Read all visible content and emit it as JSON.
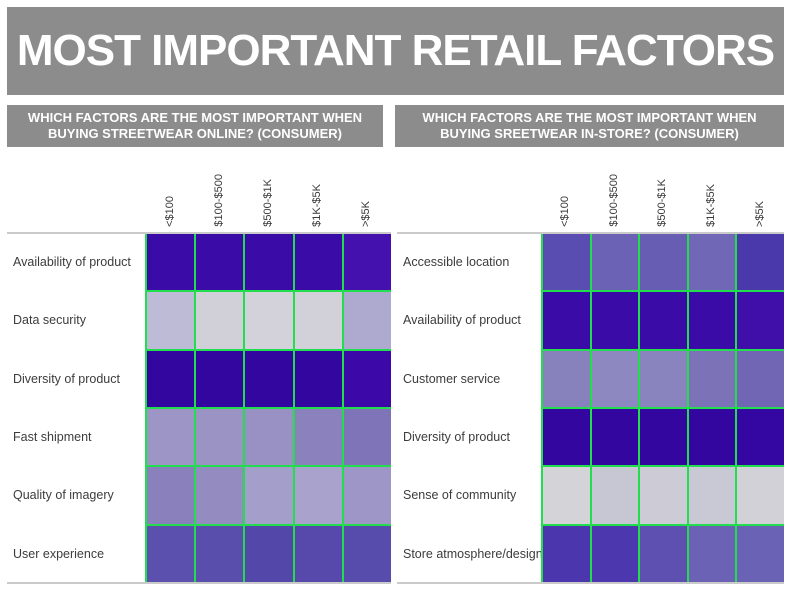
{
  "title": "MOST IMPORTANT RETAIL FACTORS",
  "theme": {
    "header_bg": "#8C8C8C",
    "header_text": "#FFFFFF",
    "grid_line_green": "#22DE4E",
    "axis_line_gray": "#CACACA",
    "row_label_text": "#3C3C3C",
    "column_label_text": "#3A3A3A",
    "background": "#FFFFFF"
  },
  "chart_data": [
    {
      "id": "online",
      "type": "heatmap",
      "title": "WHICH FACTORS ARE THE MOST IMPORTANT WHEN BUYING STREETWEAR ONLINE? (CONSUMER)",
      "columns": [
        "<$100",
        "$100-$500",
        "$500-$1K",
        "$1K-$5K",
        ">$5K"
      ],
      "rows": [
        "Availability of product",
        "Data security",
        "Diversity of product",
        "Fast shipment",
        "Quality of imagery",
        "User experience"
      ],
      "value_encoding": "cell color darkness encodes importance (darker purple = more important); no numeric labels shown",
      "cell_colors": [
        [
          "#3A0BA6",
          "#3A0BA6",
          "#3A0BA6",
          "#3A0BA6",
          "#4511AE"
        ],
        [
          "#BDBBD5",
          "#D1D0D9",
          "#D3D2DA",
          "#D2D1D9",
          "#AEAACF"
        ],
        [
          "#3306A0",
          "#3306A0",
          "#3306A0",
          "#3306A0",
          "#3C09A8"
        ],
        [
          "#9C95C5",
          "#9A93C4",
          "#9991C3",
          "#8B82BD",
          "#7F74B8"
        ],
        [
          "#8A81BC",
          "#948CC1",
          "#A49ECA",
          "#A8A2CC",
          "#9D96C6"
        ],
        [
          "#5C50AE",
          "#5A4EAD",
          "#5347AA",
          "#5649AB",
          "#574BAC"
        ]
      ]
    },
    {
      "id": "instore",
      "type": "heatmap",
      "title": "WHICH FACTORS ARE THE MOST IMPORTANT WHEN BUYING SREETWEAR IN-STORE? (CONSUMER)",
      "columns": [
        "<$100",
        "$100-$500",
        "$500-$1K",
        "$1K-$5K",
        ">$5K"
      ],
      "rows": [
        "Accessible location",
        "Availability of product",
        "Customer service",
        "Diversity of product",
        "Sense of community",
        "Store atmosphere/design"
      ],
      "value_encoding": "cell color darkness encodes importance (darker purple = more important); no numeric labels shown",
      "cell_colors": [
        [
          "#5A4DB1",
          "#6C62B5",
          "#675DB3",
          "#7067B7",
          "#4939AA"
        ],
        [
          "#3A0BA6",
          "#3A0BA6",
          "#3A0BA6",
          "#3A0BA6",
          "#400FA9"
        ],
        [
          "#8781BC",
          "#8E88C0",
          "#8A84BE",
          "#7C72B7",
          "#7166B4"
        ],
        [
          "#3306A0",
          "#3306A0",
          "#3306A0",
          "#3306A0",
          "#3507A2"
        ],
        [
          "#D4D4D8",
          "#C7C6D3",
          "#CCCBD6",
          "#C9C8D5",
          "#D2D1D8"
        ],
        [
          "#4B36AD",
          "#4D37AE",
          "#5D50B1",
          "#6B61B5",
          "#6A62B4"
        ]
      ]
    }
  ]
}
